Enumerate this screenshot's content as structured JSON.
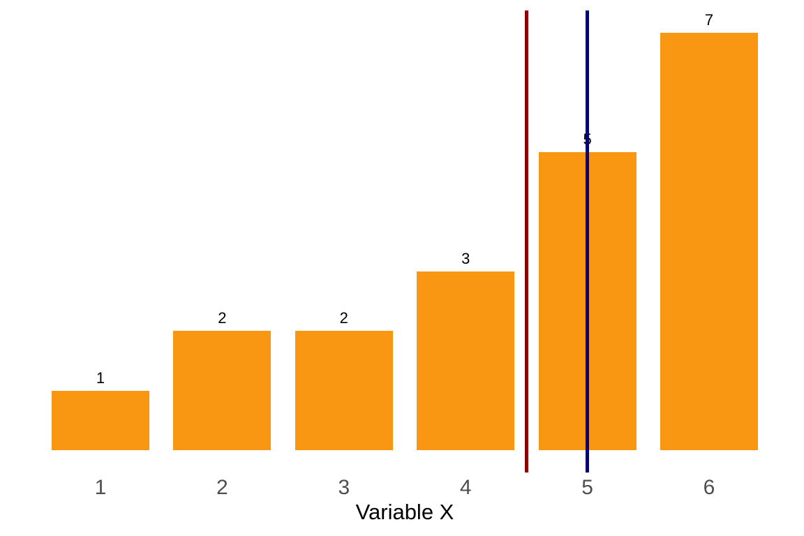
{
  "background_color": "#FFFFFF",
  "chart_data": {
    "type": "bar",
    "title": "",
    "xlabel": "Variable X",
    "ylabel": "",
    "categories": [
      "1",
      "2",
      "3",
      "4",
      "5",
      "6"
    ],
    "values": [
      1,
      2,
      2,
      3,
      5,
      7
    ],
    "value_labels": [
      "1",
      "2",
      "2",
      "3",
      "5",
      "7"
    ],
    "ylim": [
      0,
      7.2
    ],
    "grid": false,
    "legend_position": "none",
    "y_axis_shown": false,
    "bar_color": "#FA9712",
    "value_label_color": "#000000",
    "tick_label_color": "#4E4E4E",
    "xlabel_color": "#000000",
    "vlines": [
      {
        "x": 4.5,
        "color": "#8B0000"
      },
      {
        "x": 5.0,
        "color": "#00008B"
      }
    ]
  }
}
